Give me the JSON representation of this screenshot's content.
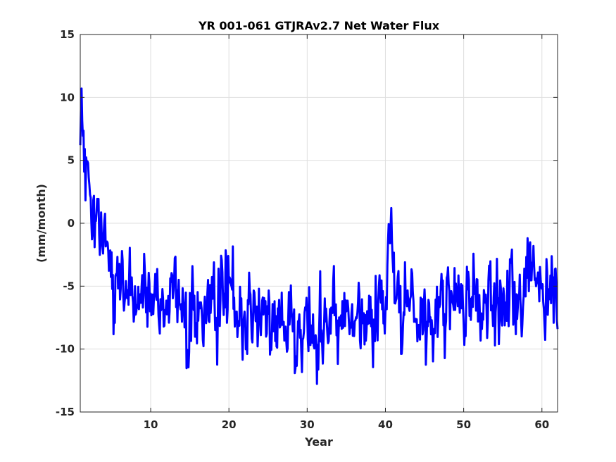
{
  "chart_data": {
    "type": "line",
    "title": "YR 001-061 GTJRAv2.7 Net Water Flux",
    "xlabel": "Year",
    "ylabel": "(mm/month)",
    "xlim": [
      1,
      62
    ],
    "ylim": [
      -15,
      15
    ],
    "xticks": [
      10,
      20,
      30,
      40,
      50,
      60
    ],
    "yticks": [
      -15,
      -10,
      -5,
      0,
      5,
      10,
      15
    ],
    "grid": true,
    "series": [
      {
        "color": "#0000ff",
        "line_width": 3,
        "points_per_year": 12,
        "x_start": 1.0,
        "trend": [
          [
            1.0,
            7.5
          ],
          [
            1.5,
            5.0
          ],
          [
            2.0,
            2.5
          ],
          [
            2.5,
            0.0
          ],
          [
            3.0,
            -1.5
          ],
          [
            4.0,
            -3.0
          ],
          [
            5.0,
            -4.5
          ],
          [
            7.0,
            -5.5
          ],
          [
            10.0,
            -6.0
          ],
          [
            15.0,
            -6.5
          ],
          [
            20.0,
            -7.0
          ],
          [
            25.0,
            -8.0
          ],
          [
            30.0,
            -8.0
          ],
          [
            35.0,
            -7.5
          ],
          [
            38.0,
            -7.5
          ],
          [
            39.5,
            -6.5
          ],
          [
            40.3,
            -3.0
          ],
          [
            40.8,
            -1.0
          ],
          [
            41.3,
            -4.0
          ],
          [
            42.0,
            -6.5
          ],
          [
            45.0,
            -6.8
          ],
          [
            50.0,
            -6.5
          ],
          [
            55.0,
            -6.5
          ],
          [
            58.0,
            -5.5
          ],
          [
            58.5,
            -3.5
          ],
          [
            59.0,
            -5.0
          ],
          [
            62.0,
            -5.0
          ]
        ],
        "noise_amplitude": 2.8,
        "seed": 20240517
      }
    ]
  }
}
